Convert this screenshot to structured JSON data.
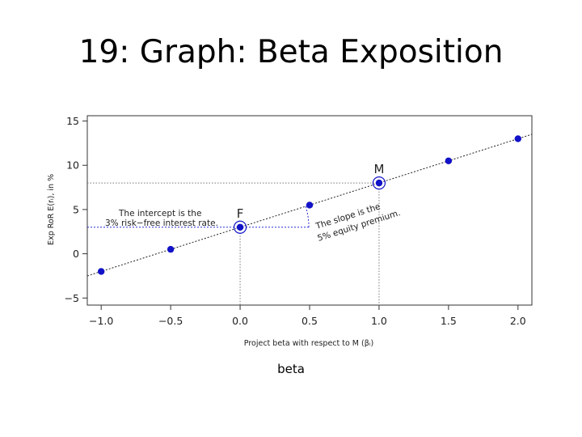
{
  "slide": {
    "title": "19: Graph: Beta Exposition",
    "caption": "beta"
  },
  "chart_data": {
    "type": "scatter",
    "title": "",
    "xlabel": "Project beta with respect to M (βᵢ)",
    "ylabel": "Exp RoR E(rᵢ), in %",
    "xlim": [
      -1.1,
      2.1
    ],
    "ylim": [
      -5.8,
      15.6
    ],
    "x_ticks": [
      -1.0,
      -0.5,
      0.0,
      0.5,
      1.0,
      1.5,
      2.0
    ],
    "x_tick_labels": [
      "−1.0",
      "−0.5",
      "0.0",
      "0.5",
      "1.0",
      "1.5",
      "2.0"
    ],
    "y_ticks": [
      -5,
      0,
      5,
      10,
      15
    ],
    "y_tick_labels": [
      "−5",
      "0",
      "5",
      "10",
      "15"
    ],
    "grid": false,
    "line": {
      "intercept": 3,
      "slope": 5,
      "style": "dashed"
    },
    "series": [
      {
        "x": [
          -1.0,
          -0.5,
          0.0,
          0.5,
          1.0,
          1.5,
          2.0
        ],
        "y": [
          -2,
          0.5,
          3,
          5.5,
          8,
          10.5,
          13
        ]
      }
    ],
    "highlighted_points": [
      {
        "label": "F",
        "x": 0.0,
        "y": 3
      },
      {
        "label": "M",
        "x": 1.0,
        "y": 8
      }
    ],
    "annotations": {
      "intercept": [
        "The intercept is the",
        "3% risk−free interest rate."
      ],
      "slope": [
        "The slope is the",
        "5% equity premium."
      ]
    },
    "colors": {
      "points": "#1212c8",
      "guide": "#2a2ad6",
      "axis": "#333333"
    }
  }
}
